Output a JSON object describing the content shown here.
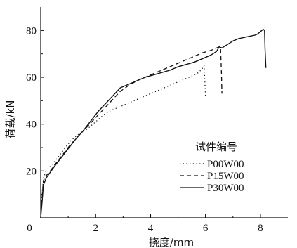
{
  "chart_data": {
    "type": "line",
    "xlabel": "挠度/mm",
    "ylabel": "荷载/kN",
    "xlim": [
      0,
      9
    ],
    "ylim": [
      0,
      90
    ],
    "xticks": [
      0,
      2,
      4,
      6,
      8
    ],
    "yticks": [
      20,
      40,
      60,
      80
    ],
    "legend_title": "试件编号",
    "legend_position": "bottom-right",
    "grid": false,
    "series": [
      {
        "name": "P00W00",
        "style": "dotted",
        "x": [
          0,
          0.05,
          0.1,
          0.2,
          0.35,
          0.5,
          0.7,
          0.9,
          1.1,
          1.3,
          1.5,
          1.7,
          1.9,
          2.1,
          2.3,
          2.5,
          2.7,
          2.9,
          3.1,
          3.4,
          3.7,
          4.0,
          4.3,
          4.6,
          4.9,
          5.2,
          5.5,
          5.75,
          5.9,
          5.95,
          5.97,
          6.0
        ],
        "y": [
          0,
          10,
          17,
          20,
          22,
          24,
          27,
          30,
          33,
          35,
          36.5,
          38,
          40,
          42,
          44,
          45.5,
          46.5,
          47.5,
          48.5,
          50,
          51.5,
          53,
          54.5,
          56,
          57.5,
          59,
          60.5,
          62,
          64,
          65,
          60,
          52
        ]
      },
      {
        "name": "P15W00",
        "style": "dashed",
        "x": [
          0,
          0.05,
          0.1,
          0.2,
          0.35,
          0.5,
          0.7,
          0.9,
          1.1,
          1.3,
          1.5,
          1.7,
          1.9,
          2.1,
          2.3,
          2.5,
          2.7,
          2.9,
          3.2,
          3.5,
          3.8,
          4.1,
          4.4,
          4.7,
          5.0,
          5.3,
          5.6,
          5.9,
          6.2,
          6.4,
          6.5,
          6.55,
          6.58,
          6.6
        ],
        "y": [
          0,
          9,
          16,
          18,
          20,
          22.5,
          25.5,
          28.5,
          31.5,
          34,
          36.5,
          39,
          41.5,
          44,
          46.5,
          49,
          51.5,
          54,
          56.5,
          58.5,
          60,
          61.5,
          63,
          64.5,
          66,
          67.5,
          69,
          70.5,
          71.5,
          72.5,
          73,
          72,
          62,
          53
        ]
      },
      {
        "name": "P30W00",
        "style": "solid",
        "x": [
          0,
          0.05,
          0.1,
          0.2,
          0.35,
          0.5,
          0.7,
          0.9,
          1.1,
          1.3,
          1.5,
          1.7,
          1.9,
          2.1,
          2.3,
          2.5,
          2.7,
          2.9,
          3.2,
          3.5,
          3.8,
          4.1,
          4.4,
          4.7,
          5.0,
          5.3,
          5.6,
          5.9,
          6.2,
          6.4,
          6.5,
          6.6,
          6.8,
          7.0,
          7.2,
          7.4,
          7.6,
          7.8,
          7.9,
          8.0,
          8.05,
          8.1,
          8.15,
          8.17,
          8.2
        ],
        "y": [
          0,
          7,
          14,
          17,
          19.5,
          22,
          25,
          28,
          31,
          34,
          36.5,
          39.5,
          42.5,
          45.5,
          48,
          50.5,
          53,
          55.5,
          57,
          58.5,
          60,
          61,
          62,
          63,
          64.5,
          65.5,
          66.5,
          68,
          69.5,
          71,
          73,
          72.5,
          74,
          75.5,
          76.5,
          77,
          77.5,
          78,
          78.5,
          79.5,
          80,
          80.5,
          80,
          72,
          64
        ]
      }
    ]
  }
}
